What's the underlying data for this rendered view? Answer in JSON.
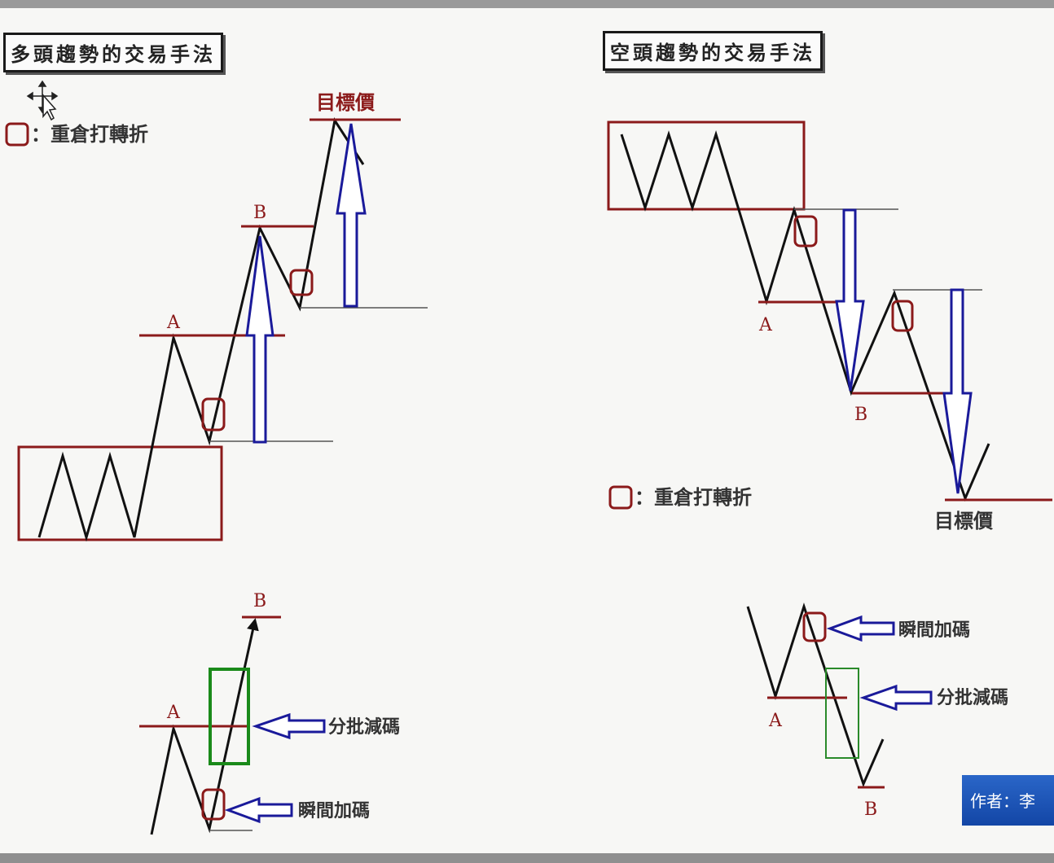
{
  "left": {
    "title": "多頭趨勢的交易手法",
    "legend": "：重倉打轉折",
    "label_target": "目標價",
    "label_a": "A",
    "label_b": "B",
    "small_label_a": "A",
    "small_label_b": "B",
    "anno_reduce": "分批減碼",
    "anno_add": "瞬間加碼"
  },
  "right": {
    "title": "空頭趨勢的交易手法",
    "legend": "：重倉打轉折",
    "label_target": "目標價",
    "label_a": "A",
    "label_b": "B",
    "small_label_a": "A",
    "small_label_b": "B",
    "anno_add": "瞬間加碼",
    "anno_reduce": "分批減碼"
  },
  "author": "作者：李"
}
